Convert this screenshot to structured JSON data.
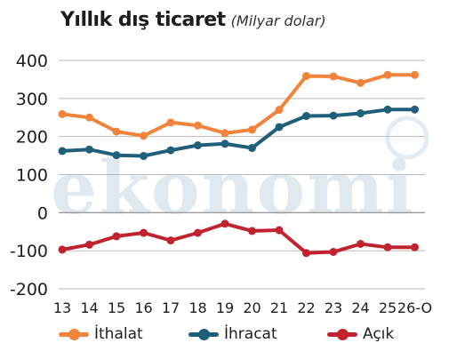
{
  "chart_data": {
    "type": "line",
    "title": "Yıllık dış ticaret",
    "subtitle": "(Milyar dolar)",
    "watermark": "ekonomi",
    "categories": [
      "13",
      "14",
      "15",
      "16",
      "17",
      "18",
      "19",
      "20",
      "21",
      "22",
      "23",
      "24",
      "25",
      "26-O"
    ],
    "ylim": [
      -200,
      400
    ],
    "yticks": [
      400,
      300,
      200,
      100,
      0,
      -100,
      -200
    ],
    "grid": true,
    "legend": "bottom",
    "series": [
      {
        "name": "İthalat",
        "color": "#f0843c",
        "values": [
          259,
          250,
          213,
          202,
          237,
          229,
          209,
          218,
          270,
          359,
          358,
          341,
          362,
          362
        ]
      },
      {
        "name": "İhracat",
        "color": "#1f5f7a",
        "values": [
          162,
          166,
          151,
          149,
          164,
          177,
          181,
          170,
          225,
          254,
          255,
          261,
          271,
          271
        ]
      },
      {
        "name": "Açık",
        "color": "#c0232f",
        "values": [
          -97,
          -84,
          -62,
          -53,
          -73,
          -53,
          -29,
          -48,
          -46,
          -106,
          -103,
          -82,
          -91,
          -91
        ]
      }
    ]
  }
}
